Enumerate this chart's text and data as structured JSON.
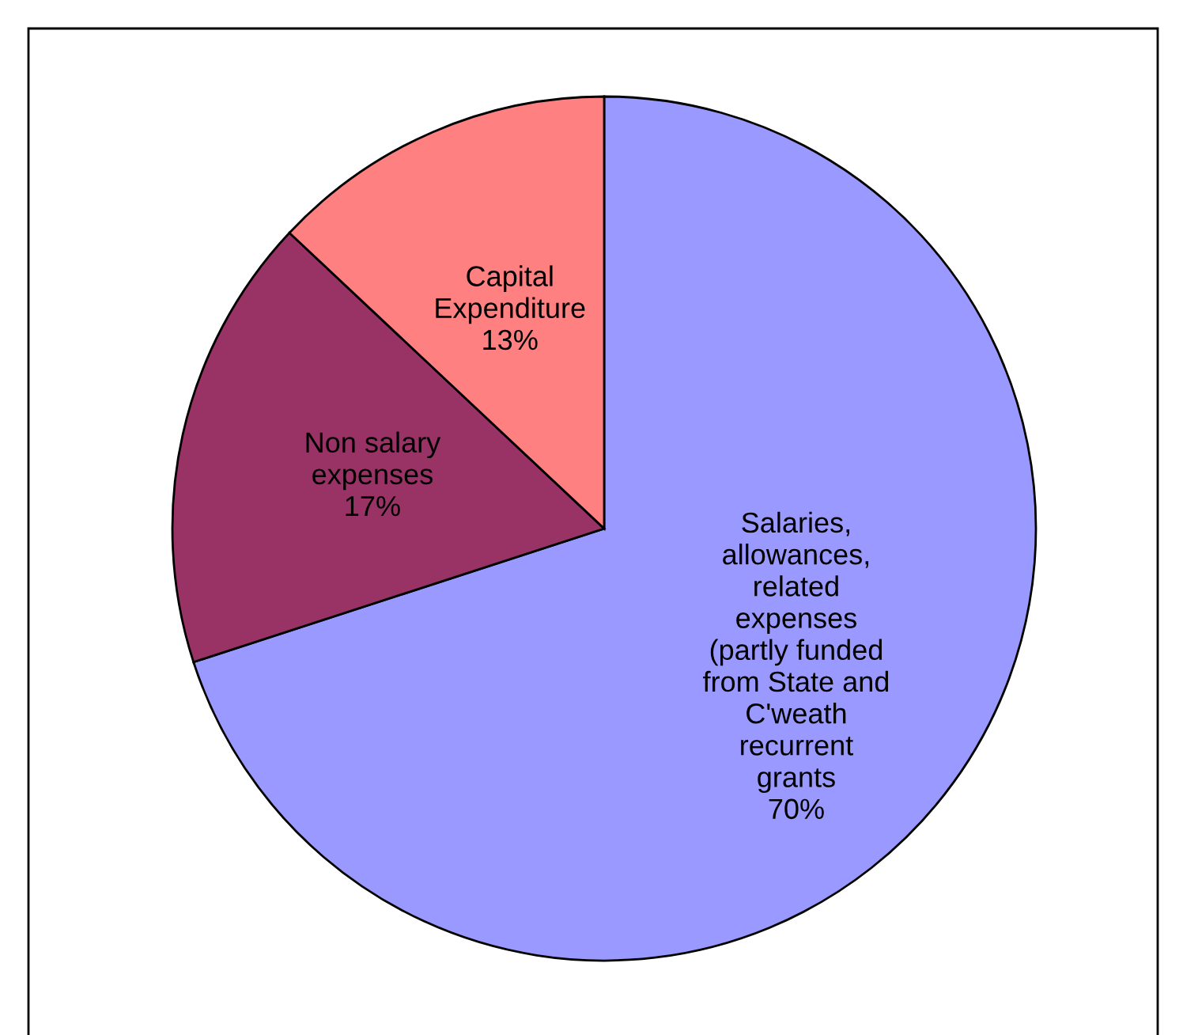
{
  "chart_data": {
    "type": "pie",
    "categories": [
      "Salaries,\nallowances,\nrelated\nexpenses\n(partly funded\nfrom State and\nC'weath\nrecurrent\ngrants",
      "Non salary\nexpenses",
      "Capital\nExpenditure"
    ],
    "values": [
      70,
      17,
      13
    ],
    "value_labels": [
      "70%",
      "17%",
      "13%"
    ],
    "colors": [
      "#9999ff",
      "#993366",
      "#ff8080"
    ],
    "legend": false
  }
}
